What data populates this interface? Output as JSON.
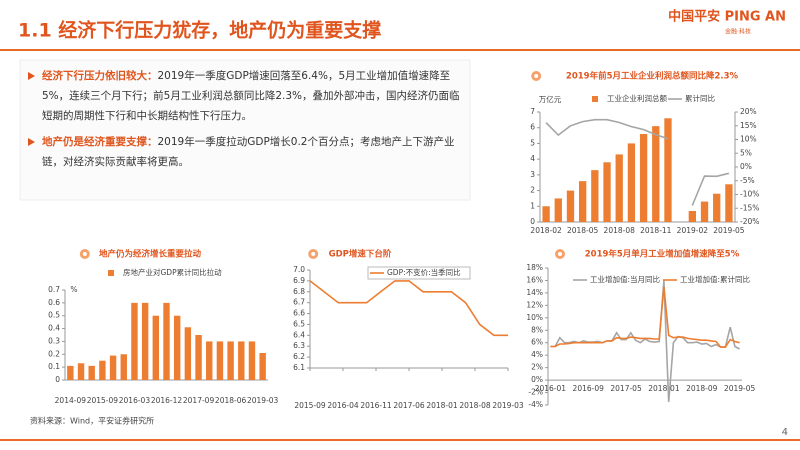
{
  "header": {
    "title": "1.1 经济下行压力犹存，地产仍为重要支撑",
    "logo": "中国平安 PING AN",
    "logo_sub": "金融·科技"
  },
  "bullets": [
    {
      "label": "经济下行压力依旧较大：",
      "text": "2019年一季度GDP增速回落至6.4%，5月工业增加值增速降至5%，连续三个月下行；前5月工业利润总额同比降2.3%，叠加外部冲击，国内经济仍面临短期的周期性下行和中长期结构性下行压力。"
    },
    {
      "label": "地产仍是经济重要支撑：",
      "text": "2019年一季度拉动GDP增长0.2个百分点；考虑地产上下游产业链，对经济实际贡献率将更高。"
    }
  ],
  "source": "资料来源：Wind，平安证券研究所",
  "page_number": "4",
  "chart_data": [
    {
      "type": "combo",
      "title": "2019年前5月工业企业利润总额同比降2.3%",
      "unit": "万亿元",
      "categories": [
        "2018-02",
        null,
        null,
        "2018-05",
        null,
        null,
        "2018-08",
        null,
        null,
        "2018-11",
        null,
        null,
        "2019-02",
        null,
        null,
        "2019-05"
      ],
      "series": [
        {
          "name": "工业企业利润总额",
          "type": "bar",
          "color": "#ed7d31",
          "values": [
            1.0,
            1.5,
            2.0,
            2.6,
            3.3,
            3.8,
            4.3,
            5.0,
            5.6,
            6.1,
            6.6,
            null,
            0.7,
            1.3,
            1.8,
            2.4
          ]
        },
        {
          "name": "累计同比",
          "type": "line",
          "axis": "y2",
          "color": "#a5a5a5",
          "values": [
            16.1,
            11.6,
            15.0,
            16.5,
            17.2,
            17.2,
            16.2,
            14.7,
            13.6,
            11.8,
            10.3,
            null,
            -14.0,
            -3.3,
            -3.4,
            -2.3
          ]
        }
      ],
      "ylim": [
        0,
        7
      ],
      "yticks": [
        0,
        1,
        2,
        3,
        4,
        5,
        6,
        7
      ],
      "y2lim": [
        -20,
        20
      ],
      "y2ticks": [
        {
          "value": -20,
          "label": "-20%"
        },
        {
          "value": -15,
          "label": "-15%"
        },
        {
          "value": -10,
          "label": "-10%"
        },
        {
          "value": -5,
          "label": "-5%"
        },
        {
          "value": 0,
          "label": "0%"
        },
        {
          "value": 5,
          "label": "5%"
        },
        {
          "value": 10,
          "label": "10%"
        },
        {
          "value": 15,
          "label": "15%"
        },
        {
          "value": 20,
          "label": "20%"
        }
      ]
    },
    {
      "type": "bar",
      "title": "地产仍为经济增长重要拉动",
      "unit": "%",
      "categories": [
        "2014-09",
        null,
        null,
        "2015-09",
        null,
        null,
        "2016-03",
        null,
        null,
        "2016-12",
        null,
        null,
        "2017-09",
        null,
        null,
        "2018-06",
        null,
        null,
        "2019-03"
      ],
      "series": [
        {
          "name": "房地产业对GDP累计同比拉动",
          "color": "#ed7d31",
          "values": [
            0.11,
            0.13,
            0.11,
            0.15,
            0.19,
            0.2,
            0.6,
            0.6,
            0.5,
            0.6,
            0.5,
            0.41,
            0.35,
            0.3,
            0.3,
            0.3,
            0.3,
            0.3,
            0.21
          ]
        }
      ],
      "ylim": [
        0,
        0.7
      ],
      "yticks": [
        0,
        0.1,
        0.2,
        0.3,
        0.4,
        0.5,
        0.6,
        0.7
      ]
    },
    {
      "type": "line",
      "title": "GDP增速下台阶",
      "x": [
        "2015-09",
        "2015-12",
        "2016-03",
        "2016-06",
        "2016-09",
        "2016-12",
        "2017-03",
        "2017-06",
        "2017-09",
        "2017-12",
        "2018-03",
        "2018-06",
        "2018-09",
        "2018-12",
        "2019-03"
      ],
      "xlim": [
        "2015-09",
        "2019-03"
      ],
      "xticks": [
        "2015-09",
        "2016-04",
        "2016-11",
        "2017-06",
        "2018-01",
        "2018-08",
        "2019-03"
      ],
      "series": [
        {
          "name": "GDP:不变价:当季同比",
          "color": "#ed7d31",
          "values": [
            6.9,
            6.8,
            6.7,
            6.7,
            6.7,
            6.8,
            6.9,
            6.9,
            6.8,
            6.8,
            6.8,
            6.7,
            6.5,
            6.4,
            6.4
          ]
        }
      ],
      "ylim": [
        6.1,
        7
      ],
      "yticks": [
        6.1,
        6.2,
        6.3,
        6.4,
        6.5,
        6.6,
        6.7,
        6.8,
        6.9,
        {
          "value": 7,
          "label": "7.0"
        }
      ]
    },
    {
      "type": "line",
      "title": "2019年5月单月工业增加值增速降至5%",
      "categories": [
        "2016-01",
        null,
        null,
        null,
        null,
        null,
        null,
        null,
        "2016-09",
        null,
        null,
        null,
        null,
        null,
        null,
        null,
        "2017-05",
        null,
        null,
        null,
        null,
        null,
        null,
        null,
        "2018-01",
        null,
        null,
        null,
        null,
        null,
        null,
        null,
        "2018-09",
        null,
        null,
        null,
        null,
        null,
        null,
        null,
        "2019-05"
      ],
      "series": [
        {
          "name": "工业增加值:当月同比",
          "color": "#a5a5a5",
          "values": [
            5.4,
            5.4,
            6.8,
            6.0,
            6.0,
            6.2,
            6.0,
            6.3,
            6.1,
            6.1,
            6.2,
            6.0,
            6.3,
            6.3,
            7.6,
            6.5,
            6.5,
            7.6,
            6.4,
            6.0,
            6.6,
            6.2,
            6.1,
            6.2,
            16.0,
            -3.5,
            6.0,
            7.0,
            6.8,
            6.0,
            6.0,
            6.1,
            5.8,
            5.9,
            5.4,
            5.7,
            5.3,
            5.3,
            8.5,
            5.4,
            5.0
          ]
        },
        {
          "name": "工业增加值:累计同比",
          "color": "#ed7d31",
          "values": [
            5.4,
            5.4,
            5.8,
            5.8,
            5.9,
            6.0,
            6.0,
            6.0,
            6.0,
            6.0,
            6.0,
            6.0,
            6.3,
            6.3,
            6.8,
            6.7,
            6.7,
            6.9,
            6.8,
            6.7,
            6.7,
            6.7,
            6.6,
            6.6,
            15.0,
            7.2,
            6.8,
            6.9,
            6.9,
            6.7,
            6.6,
            6.5,
            6.4,
            6.4,
            6.3,
            6.2,
            5.3,
            5.3,
            6.5,
            6.2,
            6.0
          ]
        }
      ],
      "ylim": [
        -4,
        18
      ],
      "yticks": [
        {
          "value": -4,
          "label": "-4%"
        },
        {
          "value": -2,
          "label": "-2%"
        },
        {
          "value": 0,
          "label": "0%"
        },
        {
          "value": 2,
          "label": "2%"
        },
        {
          "value": 4,
          "label": "4%"
        },
        {
          "value": 6,
          "label": "6%"
        },
        {
          "value": 8,
          "label": "8%"
        },
        {
          "value": 10,
          "label": "10%"
        },
        {
          "value": 12,
          "label": "12%"
        },
        {
          "value": 14,
          "label": "14%"
        },
        {
          "value": 16,
          "label": "16%"
        },
        {
          "value": 18,
          "label": "18%"
        }
      ]
    }
  ]
}
